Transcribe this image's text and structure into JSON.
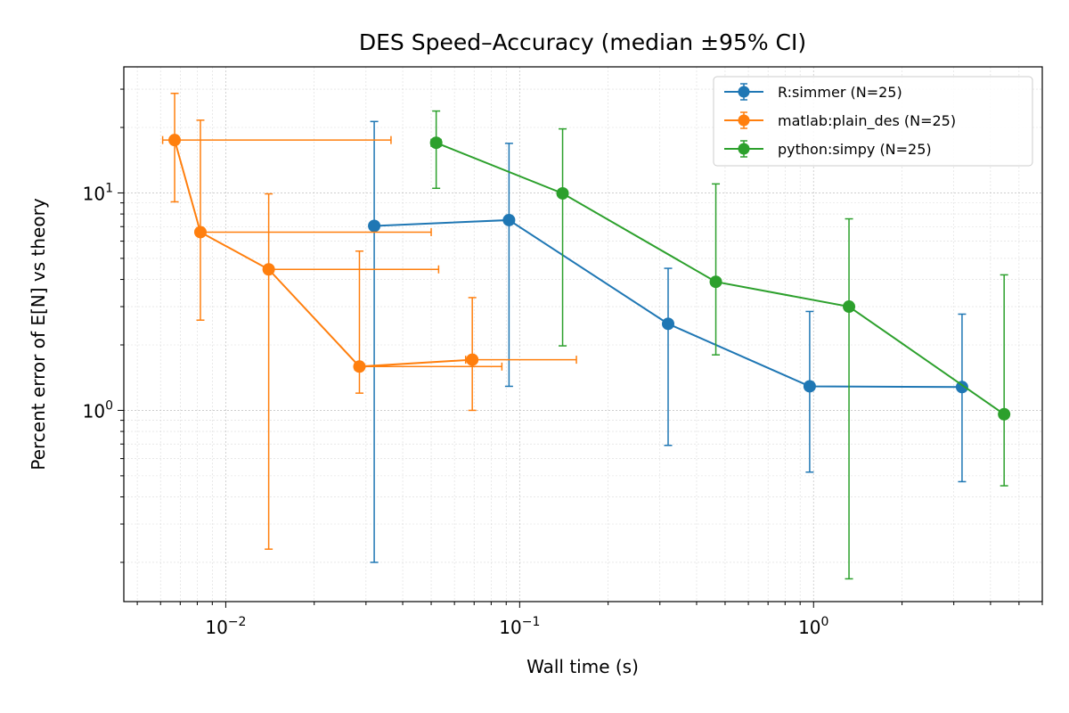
{
  "chart_data": {
    "type": "scatter",
    "title": "DES Speed–Accuracy (median ±95% CI)",
    "xlabel": "Wall time (s)",
    "ylabel": "Percent error of E[N] vs theory",
    "xscale": "log",
    "yscale": "log",
    "xlim": [
      0.0045,
      6.0
    ],
    "ylim": [
      0.132,
      38.0
    ],
    "x_ticks": [
      {
        "value": 0.01,
        "base": "10",
        "exp": "−2"
      },
      {
        "value": 0.1,
        "base": "10",
        "exp": "−1"
      },
      {
        "value": 1,
        "base": "10",
        "exp": "0"
      }
    ],
    "y_ticks": [
      {
        "value": 1,
        "base": "10",
        "exp": "0"
      },
      {
        "value": 10,
        "base": "10",
        "exp": "1"
      }
    ],
    "grid": true,
    "legend_position": "top-right",
    "series": [
      {
        "name": "R:simmer (N=25)",
        "color": "#1f77b4",
        "points": [
          {
            "x": 0.032,
            "y": 7.05,
            "y_low": 0.2,
            "y_high": 21.3,
            "x_low": 0.0316,
            "x_high": 0.0328
          },
          {
            "x": 0.092,
            "y": 7.5,
            "y_low": 1.29,
            "y_high": 16.9,
            "x_low": 0.0905,
            "x_high": 0.0935
          },
          {
            "x": 0.32,
            "y": 2.5,
            "y_low": 0.69,
            "y_high": 4.5,
            "x_low": 0.315,
            "x_high": 0.325
          },
          {
            "x": 0.97,
            "y": 1.29,
            "y_low": 0.52,
            "y_high": 2.85,
            "x_low": 0.96,
            "x_high": 0.98
          },
          {
            "x": 3.2,
            "y": 1.28,
            "y_low": 0.47,
            "y_high": 2.77,
            "x_low": 3.17,
            "x_high": 3.23
          }
        ]
      },
      {
        "name": "matlab:plain_des (N=25)",
        "color": "#ff7f0e",
        "points": [
          {
            "x": 0.0067,
            "y": 17.5,
            "y_low": 9.1,
            "y_high": 28.7,
            "x_low": 0.0061,
            "x_high": 0.0365
          },
          {
            "x": 0.0082,
            "y": 6.6,
            "y_low": 2.6,
            "y_high": 21.6,
            "x_low": 0.0082,
            "x_high": 0.05
          },
          {
            "x": 0.014,
            "y": 4.45,
            "y_low": 0.23,
            "y_high": 9.9,
            "x_low": 0.014,
            "x_high": 0.053
          },
          {
            "x": 0.0285,
            "y": 1.59,
            "y_low": 1.2,
            "y_high": 5.4,
            "x_low": 0.0275,
            "x_high": 0.087
          },
          {
            "x": 0.069,
            "y": 1.71,
            "y_low": 1.0,
            "y_high": 3.3,
            "x_low": 0.0655,
            "x_high": 0.156
          }
        ]
      },
      {
        "name": "python:simpy (N=25)",
        "color": "#2ca02c",
        "points": [
          {
            "x": 0.052,
            "y": 17.0,
            "y_low": 10.5,
            "y_high": 23.8,
            "x_low": 0.05,
            "x_high": 0.054
          },
          {
            "x": 0.14,
            "y": 9.95,
            "y_low": 1.98,
            "y_high": 19.7,
            "x_low": 0.138,
            "x_high": 0.142
          },
          {
            "x": 0.465,
            "y": 3.9,
            "y_low": 1.8,
            "y_high": 11.0,
            "x_low": 0.455,
            "x_high": 0.478
          },
          {
            "x": 1.32,
            "y": 3.0,
            "y_low": 0.168,
            "y_high": 7.6,
            "x_low": 1.31,
            "x_high": 1.34
          },
          {
            "x": 4.45,
            "y": 0.96,
            "y_low": 0.45,
            "y_high": 4.2,
            "x_low": 4.42,
            "x_high": 4.48
          }
        ]
      }
    ]
  }
}
